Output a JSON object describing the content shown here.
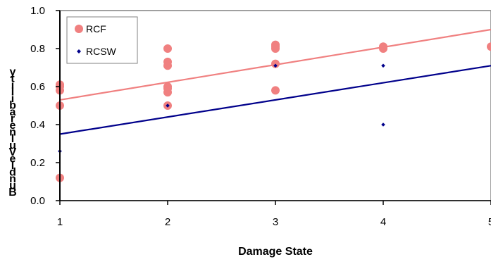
{
  "chart_data": {
    "type": "scatter",
    "xlabel": "Damage State",
    "ylabel": "Bundle Vulnerability",
    "xlim": [
      1,
      5
    ],
    "ylim": [
      0,
      1
    ],
    "x_ticks": [
      "1",
      "2",
      "3",
      "4",
      "5"
    ],
    "y_ticks": [
      "0.0",
      "0.2",
      "0.4",
      "0.6",
      "0.8",
      "1.0"
    ],
    "grid": false,
    "legend_position": "top-left",
    "series": [
      {
        "name": "RCF",
        "color": "#f08080",
        "marker": "circle",
        "points": [
          [
            1,
            0.12
          ],
          [
            1,
            0.5
          ],
          [
            1,
            0.58
          ],
          [
            1,
            0.6
          ],
          [
            1,
            0.61
          ],
          [
            2,
            0.5
          ],
          [
            2,
            0.57
          ],
          [
            2,
            0.59
          ],
          [
            2,
            0.6
          ],
          [
            2,
            0.71
          ],
          [
            2,
            0.73
          ],
          [
            2,
            0.8
          ],
          [
            3,
            0.58
          ],
          [
            3,
            0.72
          ],
          [
            3,
            0.8
          ],
          [
            3,
            0.81
          ],
          [
            3,
            0.82
          ],
          [
            4,
            0.8
          ],
          [
            4,
            0.81
          ],
          [
            5,
            0.81
          ]
        ],
        "trendline": [
          [
            1,
            0.53
          ],
          [
            5,
            0.9
          ]
        ]
      },
      {
        "name": "RCSW",
        "color": "#00008b",
        "marker": "diamond",
        "points": [
          [
            1,
            0.26
          ],
          [
            2,
            0.5
          ],
          [
            3,
            0.71
          ],
          [
            4,
            0.4
          ],
          [
            4,
            0.71
          ]
        ],
        "trendline": [
          [
            1,
            0.35
          ],
          [
            5,
            0.71
          ]
        ]
      }
    ]
  }
}
